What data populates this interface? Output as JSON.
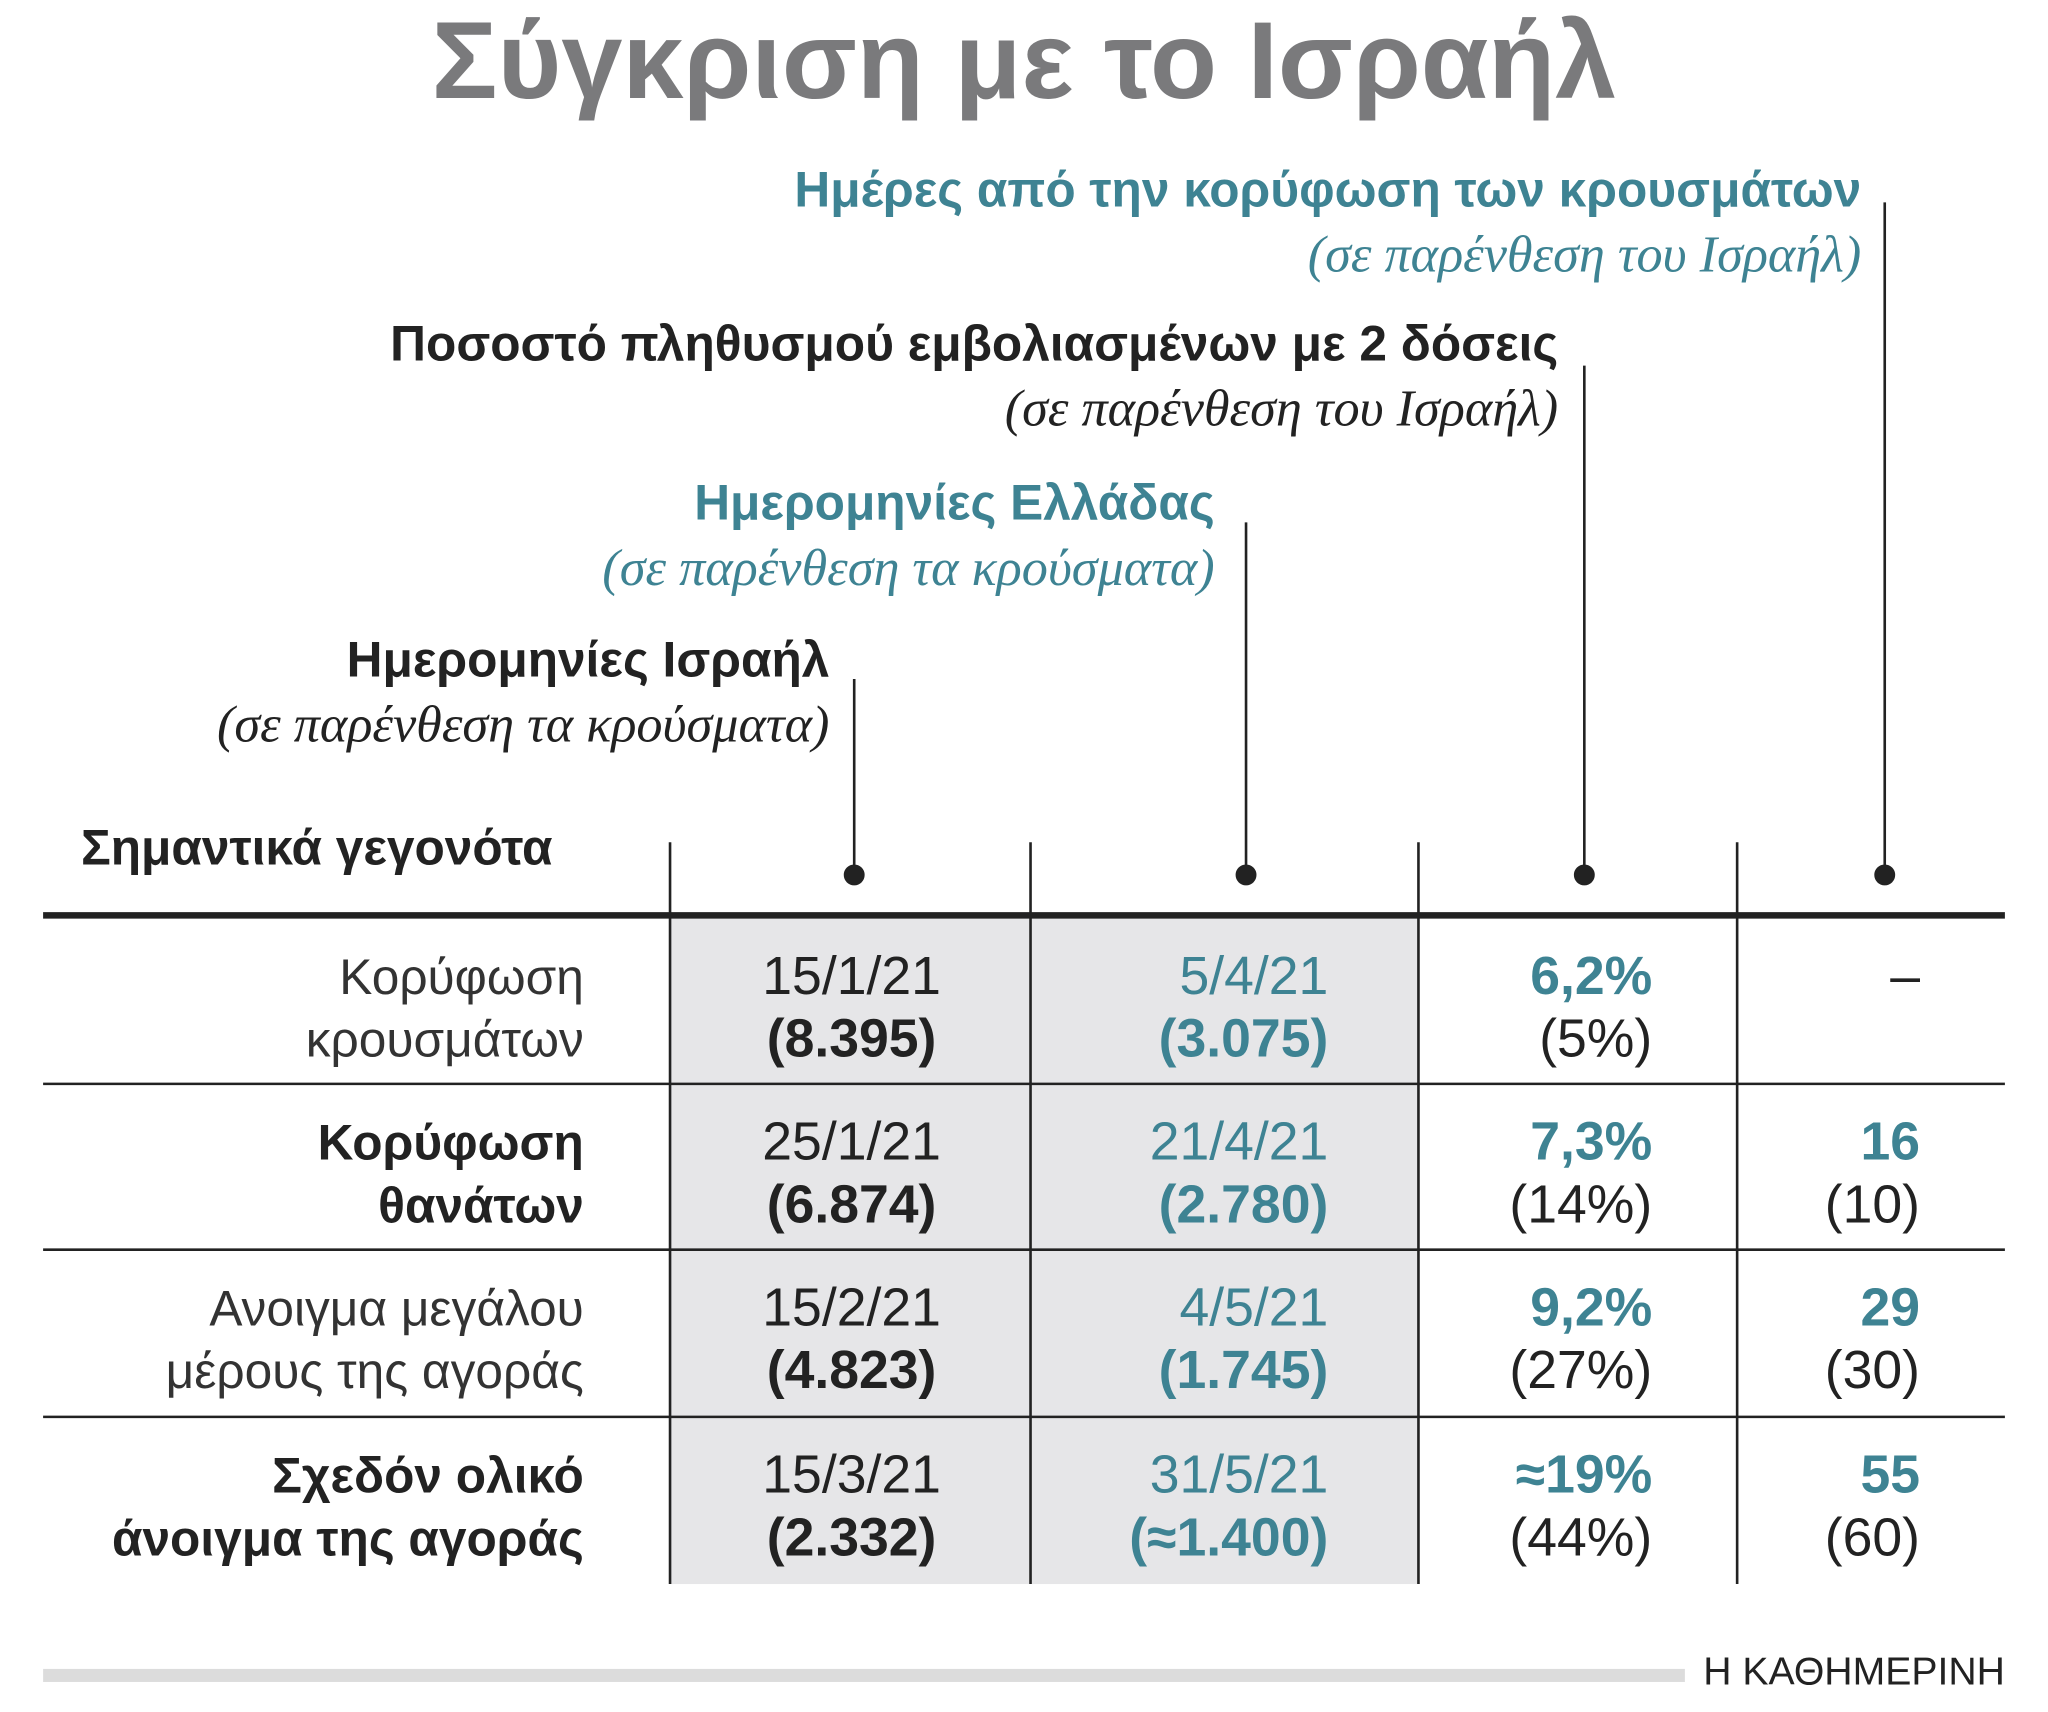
{
  "header": {
    "title": "Σύγκριση με το Ισραήλ"
  },
  "columns": [
    {
      "title": "Ημερομηνίες Ισραήλ",
      "subtitle": "(σε παρένθεση τα κρούσματα)"
    },
    {
      "title": "Ημερομηνίες Ελλάδας",
      "subtitle": "(σε παρένθεση τα κρούσματα)"
    },
    {
      "title": "Ποσοστό πληθυσμού εμβολιασμένων με 2 δόσεις",
      "subtitle": "(σε παρένθεση του Ισραήλ)"
    },
    {
      "title": "Ημέρες από την κορύφωση των κρουσμάτων",
      "subtitle": "(σε παρένθεση του Ισραήλ)"
    }
  ],
  "table": {
    "row_header": "Σημαντικά γεγονότα",
    "rows": [
      {
        "label": [
          "Κορύφωση",
          "κρουσμάτων"
        ],
        "cells": [
          [
            "15/1/21",
            "(8.395)"
          ],
          [
            "5/4/21",
            "(3.075)"
          ],
          [
            "6,2%",
            "(5%)"
          ],
          [
            "–"
          ]
        ]
      },
      {
        "label": [
          "Κορύφωση",
          "θανάτων"
        ],
        "cells": [
          [
            "25/1/21",
            "(6.874)"
          ],
          [
            "21/4/21",
            "(2.780)"
          ],
          [
            "7,3%",
            "(14%)"
          ],
          [
            "16",
            "(10)"
          ]
        ]
      },
      {
        "label": [
          "Ανοιγμα μεγάλου",
          "μέρους της αγοράς"
        ],
        "cells": [
          [
            "15/2/21",
            "(4.823)"
          ],
          [
            "4/5/21",
            "(1.745)"
          ],
          [
            "9,2%",
            "(27%)"
          ],
          [
            "29",
            "(30)"
          ]
        ]
      },
      {
        "label": [
          "Σχεδόν ολικό",
          "άνοιγμα της αγοράς"
        ],
        "cells": [
          [
            "15/3/21",
            "(2.332)"
          ],
          [
            "31/5/21",
            "(≈1.400)"
          ],
          [
            "≈19%",
            "(44%)"
          ],
          [
            "55",
            "(60)"
          ]
        ]
      }
    ]
  },
  "footer": {
    "brand": "Η ΚΑΘΗΜΕΡΙΝΗ"
  }
}
